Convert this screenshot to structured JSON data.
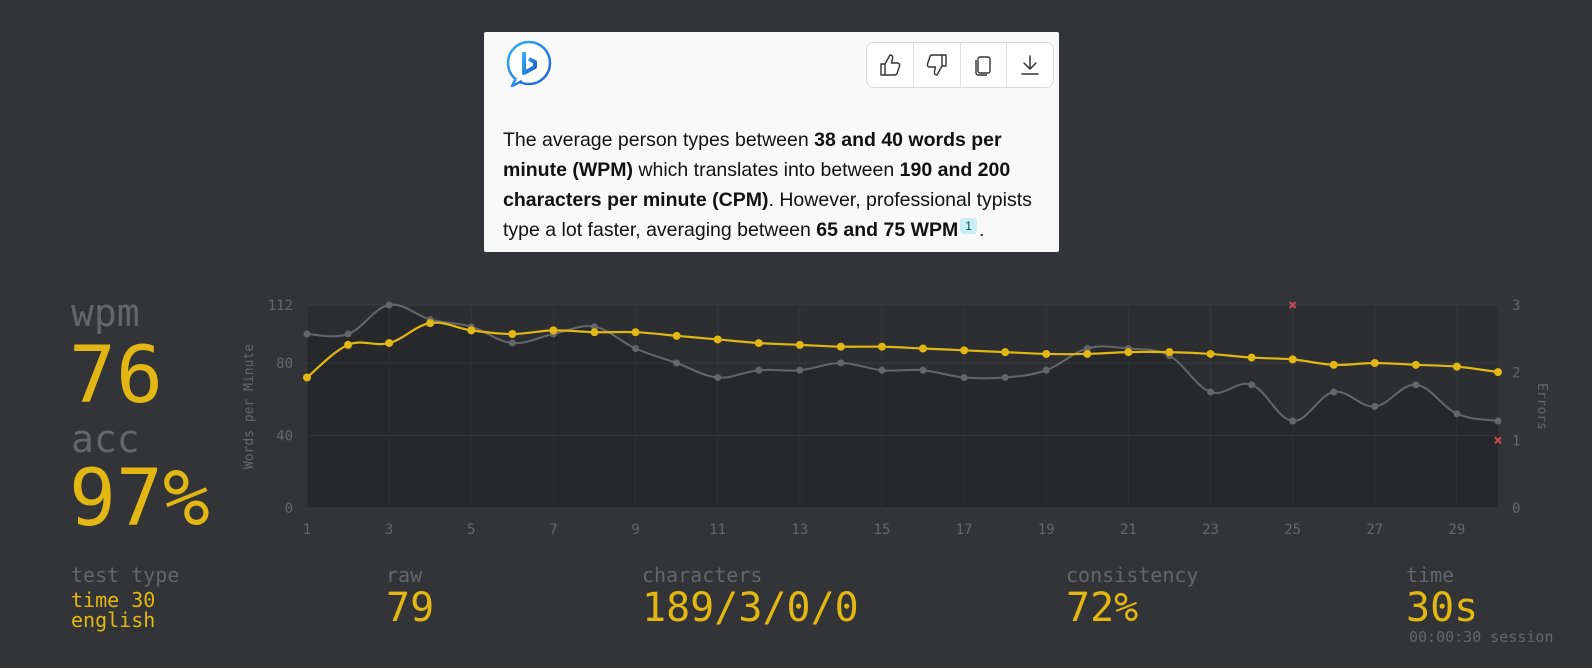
{
  "card": {
    "logo": "bing-chat-icon",
    "actions": [
      {
        "name": "like-button",
        "icon": "thumbs-up-icon"
      },
      {
        "name": "dislike-button",
        "icon": "thumbs-down-icon"
      },
      {
        "name": "copy-button",
        "icon": "copy-icon"
      },
      {
        "name": "export-button",
        "icon": "download-icon"
      }
    ],
    "message": {
      "t1": "The average person types between ",
      "b1": "38 and 40 words per minute (WPM)",
      "t2": " which translates into between ",
      "b2": "190 and 200 characters per minute (CPM)",
      "t3": ". However, professional typists type a lot faster, averaging between ",
      "b3": "65 and 75 WPM",
      "cite": "1",
      "t4": "."
    }
  },
  "stats": {
    "wpm_label": "wpm",
    "wpm_value": "76",
    "acc_label": "acc",
    "acc_value": "97%",
    "test_type_label": "test type",
    "test_type_line1": "time 30",
    "test_type_line2": "english",
    "raw_label": "raw",
    "raw_value": "79",
    "characters_label": "characters",
    "characters_value": "189/3/0/0",
    "consistency_label": "consistency",
    "consistency_value": "72%",
    "time_label": "time",
    "time_value": "30s",
    "session": "00:00:30 session"
  },
  "chart_data": {
    "type": "line",
    "x": [
      1,
      2,
      3,
      4,
      5,
      6,
      7,
      8,
      9,
      10,
      11,
      12,
      13,
      14,
      15,
      16,
      17,
      18,
      19,
      20,
      21,
      22,
      23,
      24,
      25,
      26,
      27,
      28,
      29,
      30
    ],
    "x_ticks": [
      1,
      3,
      5,
      7,
      9,
      11,
      13,
      15,
      17,
      19,
      21,
      23,
      25,
      27,
      29
    ],
    "y_ticks": [
      0,
      40,
      80,
      112
    ],
    "y2_ticks": [
      0,
      1,
      2,
      3
    ],
    "ylim": [
      0,
      112
    ],
    "y2lim": [
      0,
      3
    ],
    "ylabel": "Words per Minute",
    "y2label": "Errors",
    "grid": true,
    "series": [
      {
        "role": "wpm",
        "color": "#e2b714",
        "values": [
          72,
          90,
          91,
          102,
          98,
          96,
          98,
          97,
          97,
          95,
          93,
          91,
          90,
          89,
          89,
          88,
          87,
          86,
          85,
          85,
          86,
          86,
          85,
          83,
          82,
          79,
          80,
          79,
          78,
          75
        ]
      },
      {
        "role": "raw",
        "color": "#646669",
        "values": [
          96,
          96,
          112,
          104,
          100,
          91,
          96,
          100,
          88,
          80,
          72,
          76,
          76,
          80,
          76,
          76,
          72,
          72,
          76,
          88,
          88,
          84,
          64,
          68,
          48,
          64,
          56,
          68,
          52,
          48
        ]
      },
      {
        "role": "errors",
        "color": "#ca4754",
        "x": [
          25,
          30
        ],
        "values": [
          3,
          1
        ]
      }
    ]
  }
}
